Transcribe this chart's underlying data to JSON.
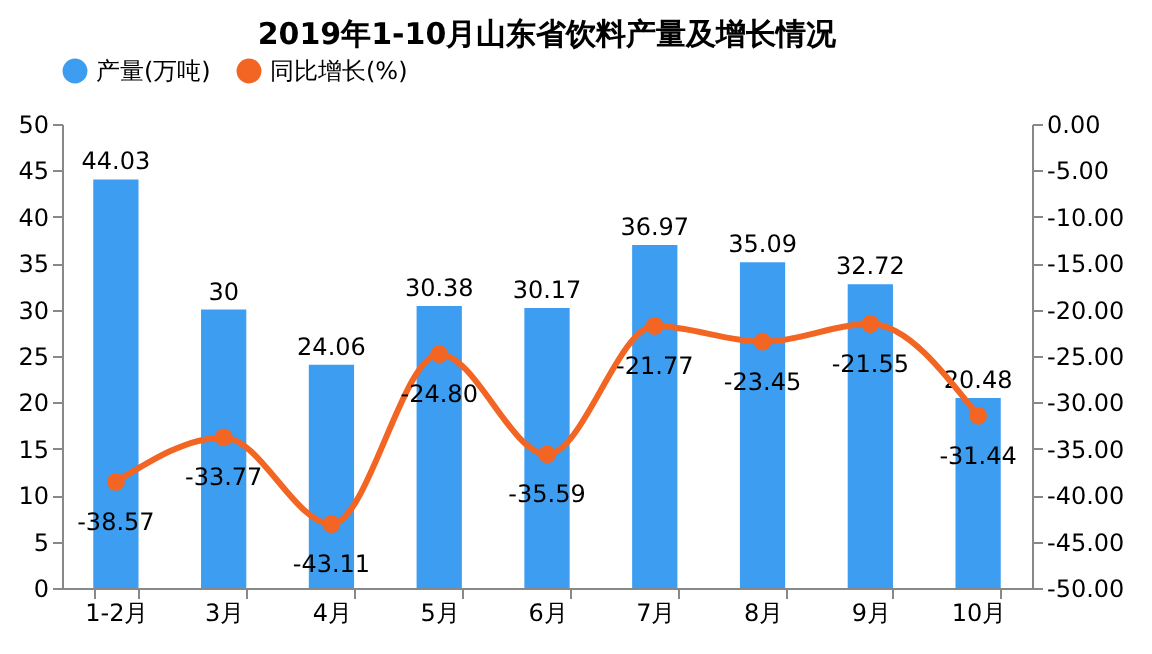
{
  "chart_data": {
    "type": "bar",
    "title": "2019年1-10月山东省饮料产量及增长情况",
    "categories": [
      "1-2月",
      "3月",
      "4月",
      "5月",
      "6月",
      "7月",
      "8月",
      "9月",
      "10月"
    ],
    "series": [
      {
        "name": "产量(万吨)",
        "color": "#3d9df0",
        "values": [
          44.03,
          30,
          24.06,
          30.38,
          30.17,
          36.97,
          35.09,
          32.72,
          20.48
        ],
        "value_labels": [
          "44.03",
          "30",
          "24.06",
          "30.38",
          "30.17",
          "36.97",
          "35.09",
          "32.72",
          "20.48"
        ]
      },
      {
        "name": "同比增长(%)",
        "type": "line",
        "axis": "y2",
        "color": "#f26522",
        "values": [
          -38.57,
          -33.77,
          -43.11,
          -24.8,
          -35.59,
          -21.77,
          -23.45,
          -21.55,
          -31.44
        ],
        "value_labels": [
          "-38.57",
          "-33.77",
          "-43.11",
          "-24.80",
          "-35.59",
          "-21.77",
          "-23.45",
          "-21.55",
          "-31.44"
        ]
      }
    ],
    "ylim": [
      0,
      50
    ],
    "yticks": [
      0,
      5,
      10,
      15,
      20,
      25,
      30,
      35,
      40,
      45,
      50
    ],
    "y2lim": [
      -50,
      0
    ],
    "y2ticks": [
      {
        "value": 0,
        "label": "0.00"
      },
      {
        "value": -5,
        "label": "-5.00"
      },
      {
        "value": -10,
        "label": "-10.00"
      },
      {
        "value": -15,
        "label": "-15.00"
      },
      {
        "value": -20,
        "label": "-20.00"
      },
      {
        "value": -25,
        "label": "-25.00"
      },
      {
        "value": -30,
        "label": "-30.00"
      },
      {
        "value": -35,
        "label": "-35.00"
      },
      {
        "value": -40,
        "label": "-40.00"
      },
      {
        "value": -45,
        "label": "-45.00"
      },
      {
        "value": -50,
        "label": "-50.00"
      }
    ],
    "legend": "top",
    "marker": "circle",
    "grid": false
  }
}
